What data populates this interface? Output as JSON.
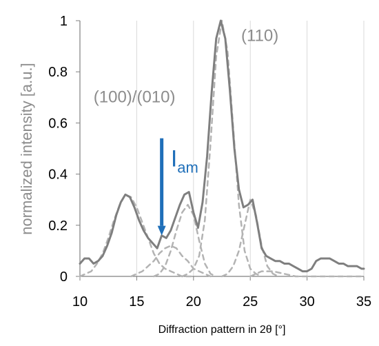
{
  "chart_data": {
    "type": "line",
    "title": "",
    "xlabel": "Diffraction pattern in 2θ [°]",
    "ylabel": "normalized intensity [a.u.]",
    "xlim": [
      10,
      35
    ],
    "ylim": [
      0,
      1
    ],
    "grid": {
      "x": true,
      "y": false
    },
    "x_ticks": [
      10,
      15,
      20,
      25,
      30,
      35
    ],
    "y_ticks": [
      0,
      0.2,
      0.4,
      0.6,
      0.8,
      1
    ],
    "x_tick_labels": [
      "10",
      "15",
      "20",
      "25",
      "30",
      "35"
    ],
    "y_tick_labels": [
      "0",
      "0.2",
      "0.4",
      "0.6",
      "0.8",
      "1"
    ],
    "colors": {
      "measured_line": "#7f7f7f",
      "fit_lines": "#b3b3b3",
      "annotation_text": "#8c8c8c",
      "arrow": "#1f6fb9",
      "grid": "#d9d9d9",
      "axis": "#7f7f7f"
    },
    "series": [
      {
        "role": "measured",
        "style": "solid",
        "x": [
          10.0,
          10.4,
          10.8,
          11.2,
          11.6,
          12.0,
          12.4,
          12.8,
          13.2,
          13.6,
          14.0,
          14.4,
          14.8,
          15.2,
          15.6,
          16.0,
          16.4,
          16.8,
          17.2,
          17.6,
          18.0,
          18.4,
          18.8,
          19.2,
          19.6,
          20.0,
          20.4,
          20.8,
          21.2,
          21.6,
          22.0,
          22.4,
          22.8,
          23.2,
          23.6,
          24.0,
          24.4,
          24.8,
          25.2,
          25.6,
          26.0,
          26.4,
          26.8,
          27.2,
          27.6,
          28.0,
          28.4,
          28.8,
          29.2,
          29.6,
          30.0,
          30.4,
          30.8,
          31.2,
          31.6,
          32.0,
          32.4,
          32.8,
          33.2,
          33.6,
          34.0,
          34.4,
          34.8,
          35.0
        ],
        "y": [
          0.05,
          0.07,
          0.07,
          0.05,
          0.06,
          0.08,
          0.12,
          0.17,
          0.24,
          0.29,
          0.32,
          0.31,
          0.27,
          0.22,
          0.18,
          0.15,
          0.13,
          0.11,
          0.16,
          0.15,
          0.18,
          0.23,
          0.28,
          0.32,
          0.33,
          0.25,
          0.19,
          0.29,
          0.47,
          0.72,
          0.93,
          1.0,
          0.93,
          0.73,
          0.5,
          0.34,
          0.27,
          0.28,
          0.3,
          0.21,
          0.11,
          0.08,
          0.07,
          0.06,
          0.06,
          0.05,
          0.05,
          0.04,
          0.03,
          0.02,
          0.02,
          0.03,
          0.06,
          0.07,
          0.07,
          0.07,
          0.06,
          0.05,
          0.05,
          0.04,
          0.04,
          0.04,
          0.03,
          0.03
        ]
      },
      {
        "role": "fit-peak",
        "style": "dashed",
        "x": [
          10.0,
          10.5,
          11.0,
          11.5,
          12.0,
          12.5,
          13.0,
          13.5,
          14.0,
          14.5,
          15.0,
          15.5,
          16.0,
          16.5,
          17.0,
          17.5,
          18.0,
          18.5,
          19.0,
          19.5,
          20.0
        ],
        "y": [
          0.0,
          0.01,
          0.02,
          0.05,
          0.09,
          0.15,
          0.22,
          0.28,
          0.32,
          0.31,
          0.27,
          0.21,
          0.15,
          0.09,
          0.05,
          0.03,
          0.02,
          0.01,
          0.0,
          0.0,
          0.0
        ]
      },
      {
        "role": "fit-peak",
        "style": "dashed",
        "x": [
          14.5,
          15.0,
          15.5,
          16.0,
          16.5,
          17.0,
          17.5,
          18.0,
          18.5,
          19.0,
          19.5,
          20.0,
          20.5,
          21.0,
          21.5
        ],
        "y": [
          0.0,
          0.01,
          0.02,
          0.04,
          0.06,
          0.09,
          0.11,
          0.12,
          0.11,
          0.08,
          0.06,
          0.03,
          0.02,
          0.01,
          0.0
        ]
      },
      {
        "role": "fit-peak",
        "style": "dashed",
        "x": [
          16.5,
          17.0,
          17.5,
          18.0,
          18.5,
          19.0,
          19.5,
          20.0,
          20.5,
          21.0,
          21.5,
          22.0
        ],
        "y": [
          0.0,
          0.01,
          0.04,
          0.1,
          0.18,
          0.25,
          0.28,
          0.24,
          0.14,
          0.05,
          0.01,
          0.0
        ]
      },
      {
        "role": "fit-peak",
        "style": "dashed",
        "x": [
          19.0,
          19.5,
          20.0,
          20.5,
          21.0,
          21.5,
          22.0,
          22.5,
          23.0,
          23.5,
          24.0,
          24.5,
          25.0,
          25.5,
          26.0
        ],
        "y": [
          0.0,
          0.01,
          0.03,
          0.08,
          0.22,
          0.52,
          0.86,
          1.0,
          0.88,
          0.58,
          0.28,
          0.1,
          0.03,
          0.01,
          0.0
        ]
      },
      {
        "role": "fit-peak",
        "style": "dashed",
        "x": [
          22.5,
          23.0,
          23.5,
          24.0,
          24.5,
          25.0,
          25.5,
          26.0,
          26.5,
          27.0,
          27.5
        ],
        "y": [
          0.0,
          0.01,
          0.04,
          0.1,
          0.2,
          0.3,
          0.24,
          0.12,
          0.04,
          0.01,
          0.0
        ]
      },
      {
        "role": "fit-peak",
        "style": "dashed",
        "x": [
          25.0,
          26.0,
          27.0,
          28.0,
          29.0,
          30.0,
          31.0,
          32.0,
          33.0,
          34.0,
          35.0
        ],
        "y": [
          0.0,
          0.02,
          0.02,
          0.01,
          0.0,
          0.0,
          0.0,
          0.0,
          0.0,
          0.0,
          0.0
        ]
      }
    ],
    "annotations": [
      {
        "text": "(110)",
        "x": 24.2,
        "y": 0.92,
        "color": "#8c8c8c"
      },
      {
        "text": "(100)/(010)",
        "x": 11.2,
        "y": 0.68,
        "color": "#8c8c8c"
      },
      {
        "text": "I",
        "sub": "am",
        "x": 18.0,
        "y": 0.43,
        "color": "#1f6fb9"
      }
    ],
    "arrow": {
      "x": 17.2,
      "y_start": 0.54,
      "y_end": 0.16,
      "color": "#1f6fb9"
    }
  }
}
